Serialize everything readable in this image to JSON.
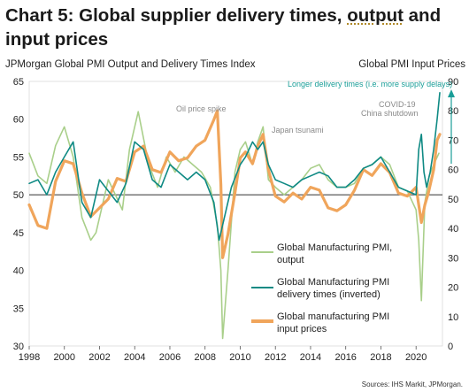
{
  "title_main": "Chart 5: Global supplier delivery times, ",
  "title_underlined": "output",
  "title_end": " and input prices",
  "chart_data": {
    "type": "line",
    "left_axis_title": "JPMorgan Global PMI Output and Delivery Times Index",
    "right_axis_title": "Global PMI Input Prices",
    "ylim_left": [
      30,
      65
    ],
    "ylim_right": [
      0,
      90
    ],
    "xlim": [
      1998,
      2021.5
    ],
    "yticks_left": [
      "65",
      "60",
      "55",
      "50",
      "45",
      "40",
      "35",
      "30"
    ],
    "yticks_right": [
      "90",
      "80",
      "70",
      "60",
      "50",
      "40",
      "30",
      "20",
      "10",
      "0"
    ],
    "xticks": [
      "1998",
      "2000",
      "2002",
      "2004",
      "2006",
      "2008",
      "2010",
      "2012",
      "2014",
      "2016",
      "2018",
      "2020"
    ],
    "reference_line_left": 50,
    "annotations": {
      "longer_delivery": "Longer delivery times (i.e. more supply delays)",
      "oil": "Oil price spike",
      "japan": "Japan tsunami",
      "covid1": "COVID-19",
      "covid2": "China shutdown"
    },
    "series": [
      {
        "name": "Global Manufacturing PMI, output",
        "axis": "left",
        "color": "#a9cf8a",
        "x": [
          1998.0,
          1998.5,
          1999.0,
          1999.5,
          2000.0,
          2000.5,
          2001.0,
          2001.5,
          2001.8,
          2002.5,
          2003.0,
          2003.3,
          2003.7,
          2004.2,
          2004.8,
          2005.3,
          2005.8,
          2006.3,
          2006.8,
          2007.3,
          2007.8,
          2008.3,
          2008.7,
          2008.9,
          2009.0,
          2009.3,
          2009.7,
          2010.0,
          2010.3,
          2010.7,
          2011.0,
          2011.3,
          2011.6,
          2012.0,
          2012.5,
          2013.0,
          2013.5,
          2014.0,
          2014.5,
          2015.0,
          2015.5,
          2016.0,
          2016.5,
          2017.0,
          2017.5,
          2018.0,
          2018.5,
          2019.0,
          2019.5,
          2020.0,
          2020.15,
          2020.3,
          2020.5,
          2020.75,
          2021.0,
          2021.3
        ],
        "y": [
          55.5,
          52.5,
          51.5,
          56.5,
          59,
          55,
          47,
          44,
          45,
          52,
          49.5,
          48,
          56,
          61,
          54,
          51,
          55,
          53,
          55,
          54,
          53,
          51,
          46,
          40,
          31,
          40,
          53,
          56,
          57,
          54,
          57,
          59,
          52,
          51,
          50,
          51,
          52,
          53.5,
          54,
          52,
          51,
          51,
          51.5,
          53.5,
          54,
          55,
          54,
          51,
          50.5,
          48,
          44,
          36,
          49,
          52.5,
          54,
          55.5
        ]
      },
      {
        "name": "Global Manufacturing PMI delivery times (inverted)",
        "axis": "left",
        "color": "#0f8a84",
        "x": [
          1998.0,
          1998.5,
          1999.0,
          1999.5,
          2000.0,
          2000.5,
          2001.0,
          2001.5,
          2002.0,
          2002.5,
          2003.0,
          2003.5,
          2004.0,
          2004.5,
          2005.0,
          2005.5,
          2006.0,
          2006.5,
          2007.0,
          2007.5,
          2008.0,
          2008.5,
          2008.8,
          2009.0,
          2009.5,
          2010.0,
          2010.3,
          2010.7,
          2011.0,
          2011.3,
          2011.6,
          2012.0,
          2012.5,
          2013.0,
          2013.5,
          2014.0,
          2014.5,
          2015.0,
          2015.5,
          2016.0,
          2016.5,
          2017.0,
          2017.5,
          2018.0,
          2018.5,
          2019.0,
          2019.5,
          2020.0,
          2020.15,
          2020.3,
          2020.45,
          2020.6,
          2020.8,
          2021.0,
          2021.2,
          2021.35
        ],
        "y": [
          51.5,
          52,
          50,
          53,
          55,
          57,
          49,
          47,
          52,
          50.5,
          49,
          51.5,
          57,
          56,
          52,
          51,
          54,
          53,
          52,
          53,
          52,
          49,
          44,
          46,
          51,
          54,
          55,
          57,
          56,
          57,
          54,
          52,
          51.5,
          51,
          52,
          52.5,
          53,
          52.5,
          51,
          51,
          52,
          53.5,
          54,
          55,
          53,
          51,
          50.5,
          50,
          56,
          58,
          53,
          51,
          53,
          56,
          60,
          63.5
        ]
      },
      {
        "name": "Global manufacturing PMI input prices",
        "axis": "right",
        "color": "#f0a55b",
        "x": [
          1998.0,
          1998.5,
          1999.0,
          1999.5,
          2000.0,
          2000.5,
          2001.0,
          2001.5,
          2002.0,
          2002.5,
          2003.0,
          2003.5,
          2004.0,
          2004.5,
          2005.0,
          2005.5,
          2006.0,
          2006.5,
          2007.0,
          2007.5,
          2008.0,
          2008.5,
          2008.7,
          2008.9,
          2009.0,
          2009.3,
          2009.7,
          2010.0,
          2010.3,
          2010.7,
          2011.0,
          2011.3,
          2011.6,
          2012.0,
          2012.5,
          2013.0,
          2013.5,
          2014.0,
          2014.5,
          2015.0,
          2015.5,
          2016.0,
          2016.5,
          2017.0,
          2017.5,
          2018.0,
          2018.5,
          2019.0,
          2019.5,
          2020.0,
          2020.15,
          2020.3,
          2020.5,
          2020.7,
          2021.0,
          2021.2,
          2021.35
        ],
        "y": [
          48,
          41,
          40,
          56,
          63,
          62,
          52,
          44,
          47,
          50,
          57,
          56,
          66,
          68,
          60,
          59,
          66,
          63,
          64,
          68,
          70,
          77,
          80,
          55,
          30,
          38,
          52,
          64,
          66,
          62,
          68,
          72,
          60,
          51,
          49,
          52,
          50,
          54,
          53,
          47,
          46,
          48,
          53,
          60,
          58,
          62,
          59,
          52,
          51,
          54,
          48,
          42,
          48,
          52,
          60,
          70,
          72
        ]
      }
    ],
    "legend": [
      "Global Manufacturing PMI, output",
      "Global Manufacturing PMI delivery times (inverted)",
      "Global manufacturing PMI input prices"
    ],
    "source": "Sources: IHS Markit, JPMorgan."
  },
  "legend_lines": {
    "output": [
      "Global Manufacturing PMI,",
      "output"
    ],
    "delivery": [
      "Global Manufacturing PMI",
      "delivery times (inverted)"
    ],
    "prices": [
      "Global manufacturing PMI",
      "input prices"
    ]
  }
}
